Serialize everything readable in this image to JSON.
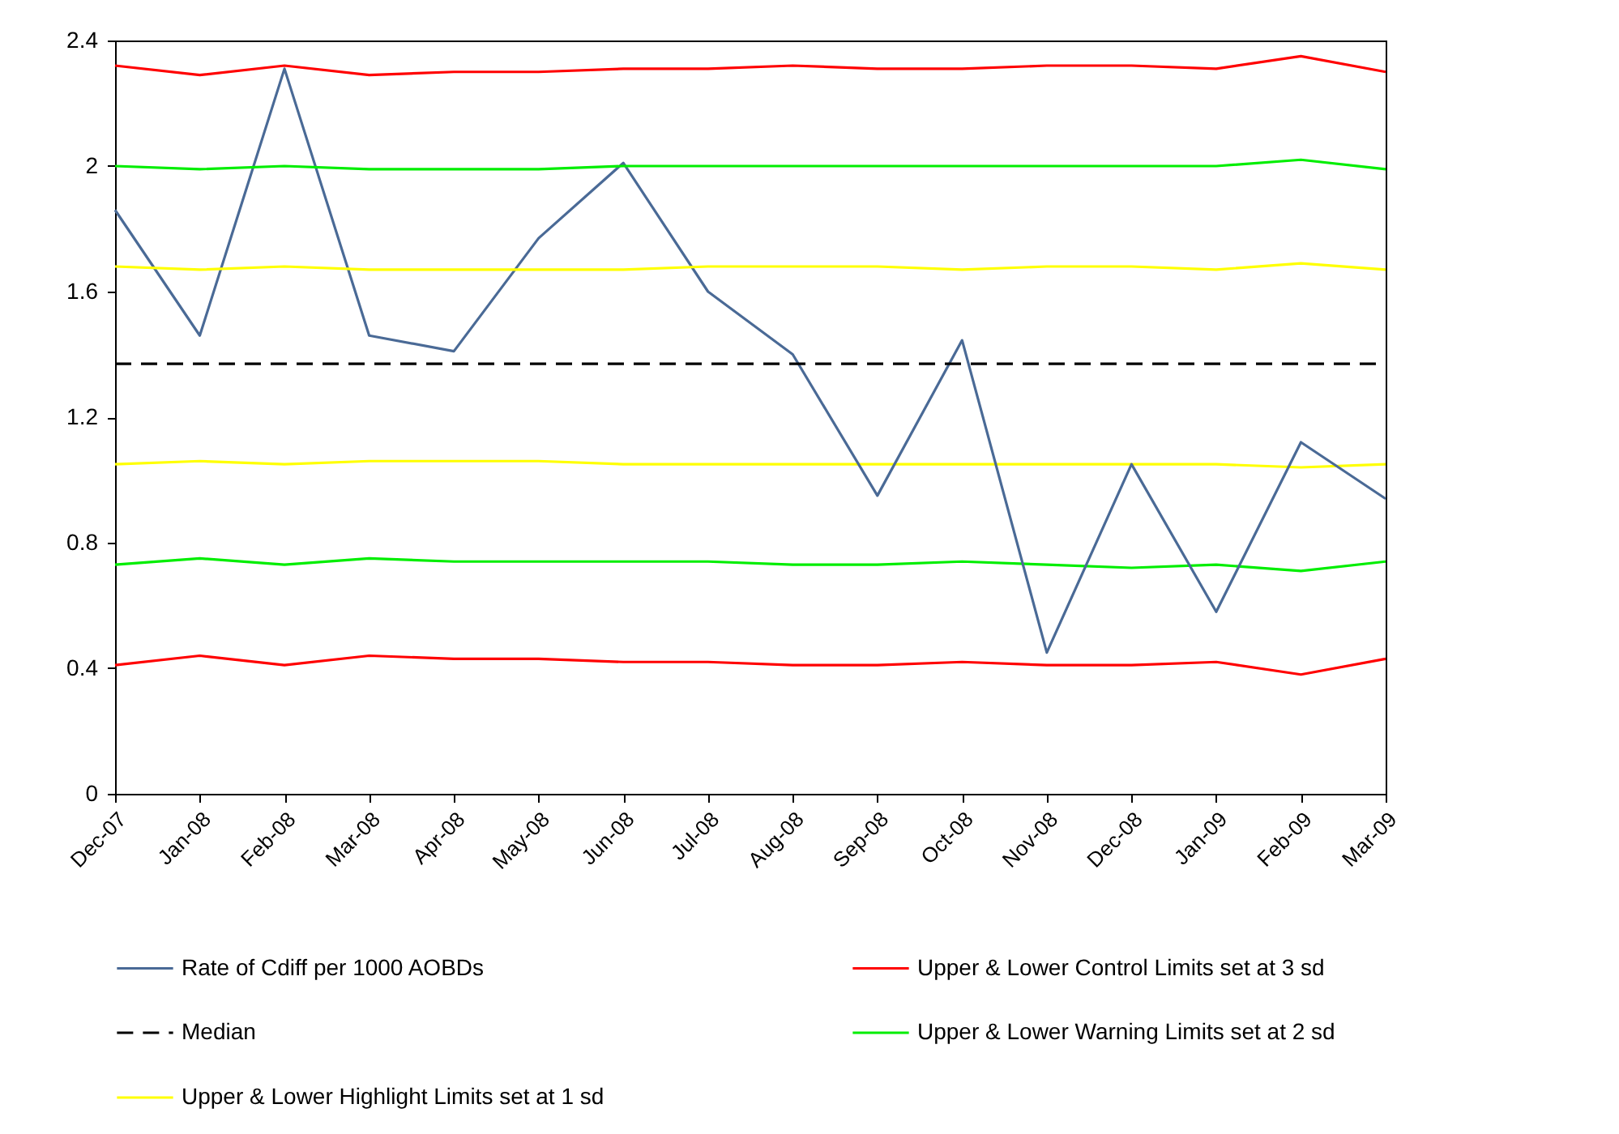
{
  "chart_data": {
    "type": "line",
    "categories": [
      "Dec-07",
      "Jan-08",
      "Feb-08",
      "Mar-08",
      "Apr-08",
      "May-08",
      "Jun-08",
      "Jul-08",
      "Aug-08",
      "Sep-08",
      "Oct-08",
      "Nov-08",
      "Dec-08",
      "Jan-09",
      "Feb-09",
      "Mar-09"
    ],
    "series": [
      {
        "name": "Rate of Cdiff per 1000 AOBDs",
        "color": "#4a6a96",
        "values": [
          1.86,
          1.46,
          2.31,
          1.46,
          1.41,
          1.77,
          2.01,
          1.6,
          1.4,
          0.95,
          1.445,
          0.45,
          1.05,
          0.58,
          1.12,
          0.94
        ]
      },
      {
        "name": "Upper & Lower Control Limits set at 3 sd",
        "color": "#ff0000",
        "values": [
          2.32,
          2.29,
          2.32,
          2.29,
          2.3,
          2.3,
          2.31,
          2.31,
          2.32,
          2.31,
          2.31,
          2.32,
          2.32,
          2.31,
          2.35,
          2.3
        ]
      },
      {
        "name": "Median",
        "color": "#000000",
        "line_style": "dashed",
        "values": [
          1.37,
          1.37,
          1.37,
          1.37,
          1.37,
          1.37,
          1.37,
          1.37,
          1.37,
          1.37,
          1.37,
          1.37,
          1.37,
          1.37,
          1.37,
          1.37
        ]
      },
      {
        "name": "Upper & Lower Warning Limits set at 2 sd",
        "color": "#00ee00",
        "values": [
          2.0,
          1.99,
          2.0,
          1.99,
          1.99,
          1.99,
          2.0,
          2.0,
          2.0,
          2.0,
          2.0,
          2.0,
          2.0,
          2.0,
          2.02,
          1.99
        ]
      },
      {
        "name": "Upper & Lower Highlight Limits set at 1 sd",
        "color": "#ffff00",
        "values": [
          1.68,
          1.67,
          1.68,
          1.67,
          1.67,
          1.67,
          1.67,
          1.68,
          1.68,
          1.68,
          1.67,
          1.68,
          1.68,
          1.67,
          1.69,
          1.67
        ]
      },
      {
        "color": "#ffff00",
        "values": [
          1.05,
          1.06,
          1.05,
          1.06,
          1.06,
          1.06,
          1.05,
          1.05,
          1.05,
          1.05,
          1.05,
          1.05,
          1.05,
          1.05,
          1.04,
          1.05
        ]
      },
      {
        "color": "#00ee00",
        "values": [
          0.73,
          0.75,
          0.73,
          0.75,
          0.74,
          0.74,
          0.74,
          0.74,
          0.73,
          0.73,
          0.74,
          0.73,
          0.72,
          0.73,
          0.71,
          0.74
        ]
      },
      {
        "color": "#ff0000",
        "values": [
          0.41,
          0.44,
          0.41,
          0.44,
          0.43,
          0.43,
          0.42,
          0.42,
          0.41,
          0.41,
          0.42,
          0.41,
          0.41,
          0.42,
          0.38,
          0.43
        ]
      }
    ],
    "ylim": [
      0,
      2.4
    ],
    "yticks": [
      0,
      0.4,
      0.8,
      1.2,
      1.6,
      2,
      2.4
    ],
    "legend": "bottom",
    "marker": "none",
    "line_style": "solid"
  }
}
